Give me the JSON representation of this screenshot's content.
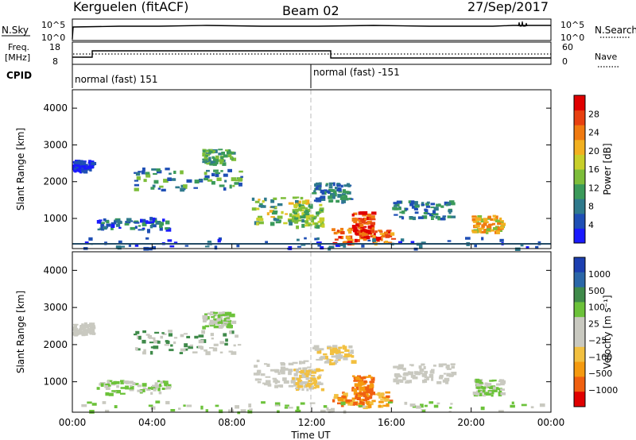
{
  "header": {
    "station": "Kerguelen (fitACF)",
    "beam": "Beam 02",
    "date": "27/Sep/2017"
  },
  "top_panels": {
    "nsky_label": "N.Sky",
    "nsky_ticks": [
      "10^5",
      "10^0"
    ],
    "nsearch_label": "N.Search",
    "nsearch_ticks": [
      "10^5",
      "10^0"
    ],
    "freq_label_1": "Freq.",
    "freq_label_2": "[MHz]",
    "freq_ticks": [
      "18",
      "8"
    ],
    "nave_label": "Nave",
    "nave_ticks": [
      "60",
      "0"
    ],
    "cpid_label": "CPID",
    "cpid_1": "normal (fast) 151",
    "cpid_2": "normal (fast) -151"
  },
  "chart_data": [
    {
      "type": "heatmap",
      "title": "",
      "ylabel": "Slant Range [km]",
      "xlabel": "",
      "x_range_hours": [
        0,
        24
      ],
      "ylim": [
        180,
        4500
      ],
      "yticks": [
        "1000",
        "2000",
        "3000",
        "4000"
      ],
      "colorbar_label": "Power [dB]",
      "colorbar_ticks": [
        "4",
        "8",
        "12",
        "16",
        "20",
        "24",
        "28"
      ],
      "colorbar_colors": [
        "#1a1aff",
        "#1f4fb5",
        "#2f7a8c",
        "#3b9a5a",
        "#7dbd3a",
        "#c8cf2a",
        "#f2b020",
        "#f07a10",
        "#e84010",
        "#e00000"
      ]
    },
    {
      "type": "heatmap",
      "title": "",
      "ylabel": "Slant Range [km]",
      "xlabel": "Time UT",
      "x_range_hours": [
        0,
        24
      ],
      "xticks": [
        "00:00",
        "04:00",
        "08:00",
        "12:00",
        "16:00",
        "20:00",
        "00:00"
      ],
      "ylim": [
        180,
        4500
      ],
      "yticks": [
        "1000",
        "2000",
        "3000",
        "4000"
      ],
      "colorbar_label": "Velocity [m s⁻¹]",
      "colorbar_ticks": [
        "1000",
        "500",
        "100",
        "25",
        "−25",
        "−100",
        "−500",
        "−1000"
      ],
      "colorbar_colors": [
        "#1c3fb0",
        "#2b67a8",
        "#3f8a4a",
        "#6cc23a",
        "#c9c9c0",
        "#c9c9c0",
        "#f2c040",
        "#f59a10",
        "#f06010",
        "#e00000"
      ]
    }
  ]
}
